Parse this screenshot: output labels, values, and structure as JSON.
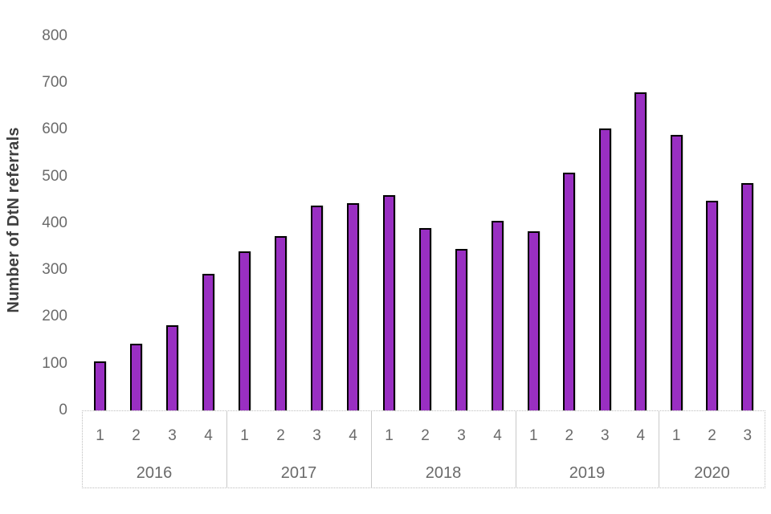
{
  "chart_data": {
    "type": "bar",
    "title": "",
    "xlabel": "",
    "ylabel": "Number of DtN referrals",
    "ylim": [
      0,
      800
    ],
    "yticks": [
      0,
      100,
      200,
      300,
      400,
      500,
      600,
      700,
      800
    ],
    "grid": false,
    "legend": null,
    "bar_color": "#992fc2",
    "bar_border_color": "#000000",
    "axis_label_color": "#6a6a6a",
    "groups": [
      {
        "year": "2016",
        "quarters": [
          "1",
          "2",
          "3",
          "4"
        ],
        "values": [
          105,
          143,
          182,
          292
        ]
      },
      {
        "year": "2017",
        "quarters": [
          "1",
          "2",
          "3",
          "4"
        ],
        "values": [
          340,
          372,
          438,
          442
        ]
      },
      {
        "year": "2018",
        "quarters": [
          "1",
          "2",
          "3",
          "4"
        ],
        "values": [
          460,
          390,
          344,
          404
        ]
      },
      {
        "year": "2019",
        "quarters": [
          "1",
          "2",
          "3",
          "4"
        ],
        "values": [
          382,
          508,
          602,
          680
        ]
      },
      {
        "year": "2020",
        "quarters": [
          "1",
          "2",
          "3"
        ],
        "values": [
          588,
          448,
          486
        ]
      }
    ]
  }
}
